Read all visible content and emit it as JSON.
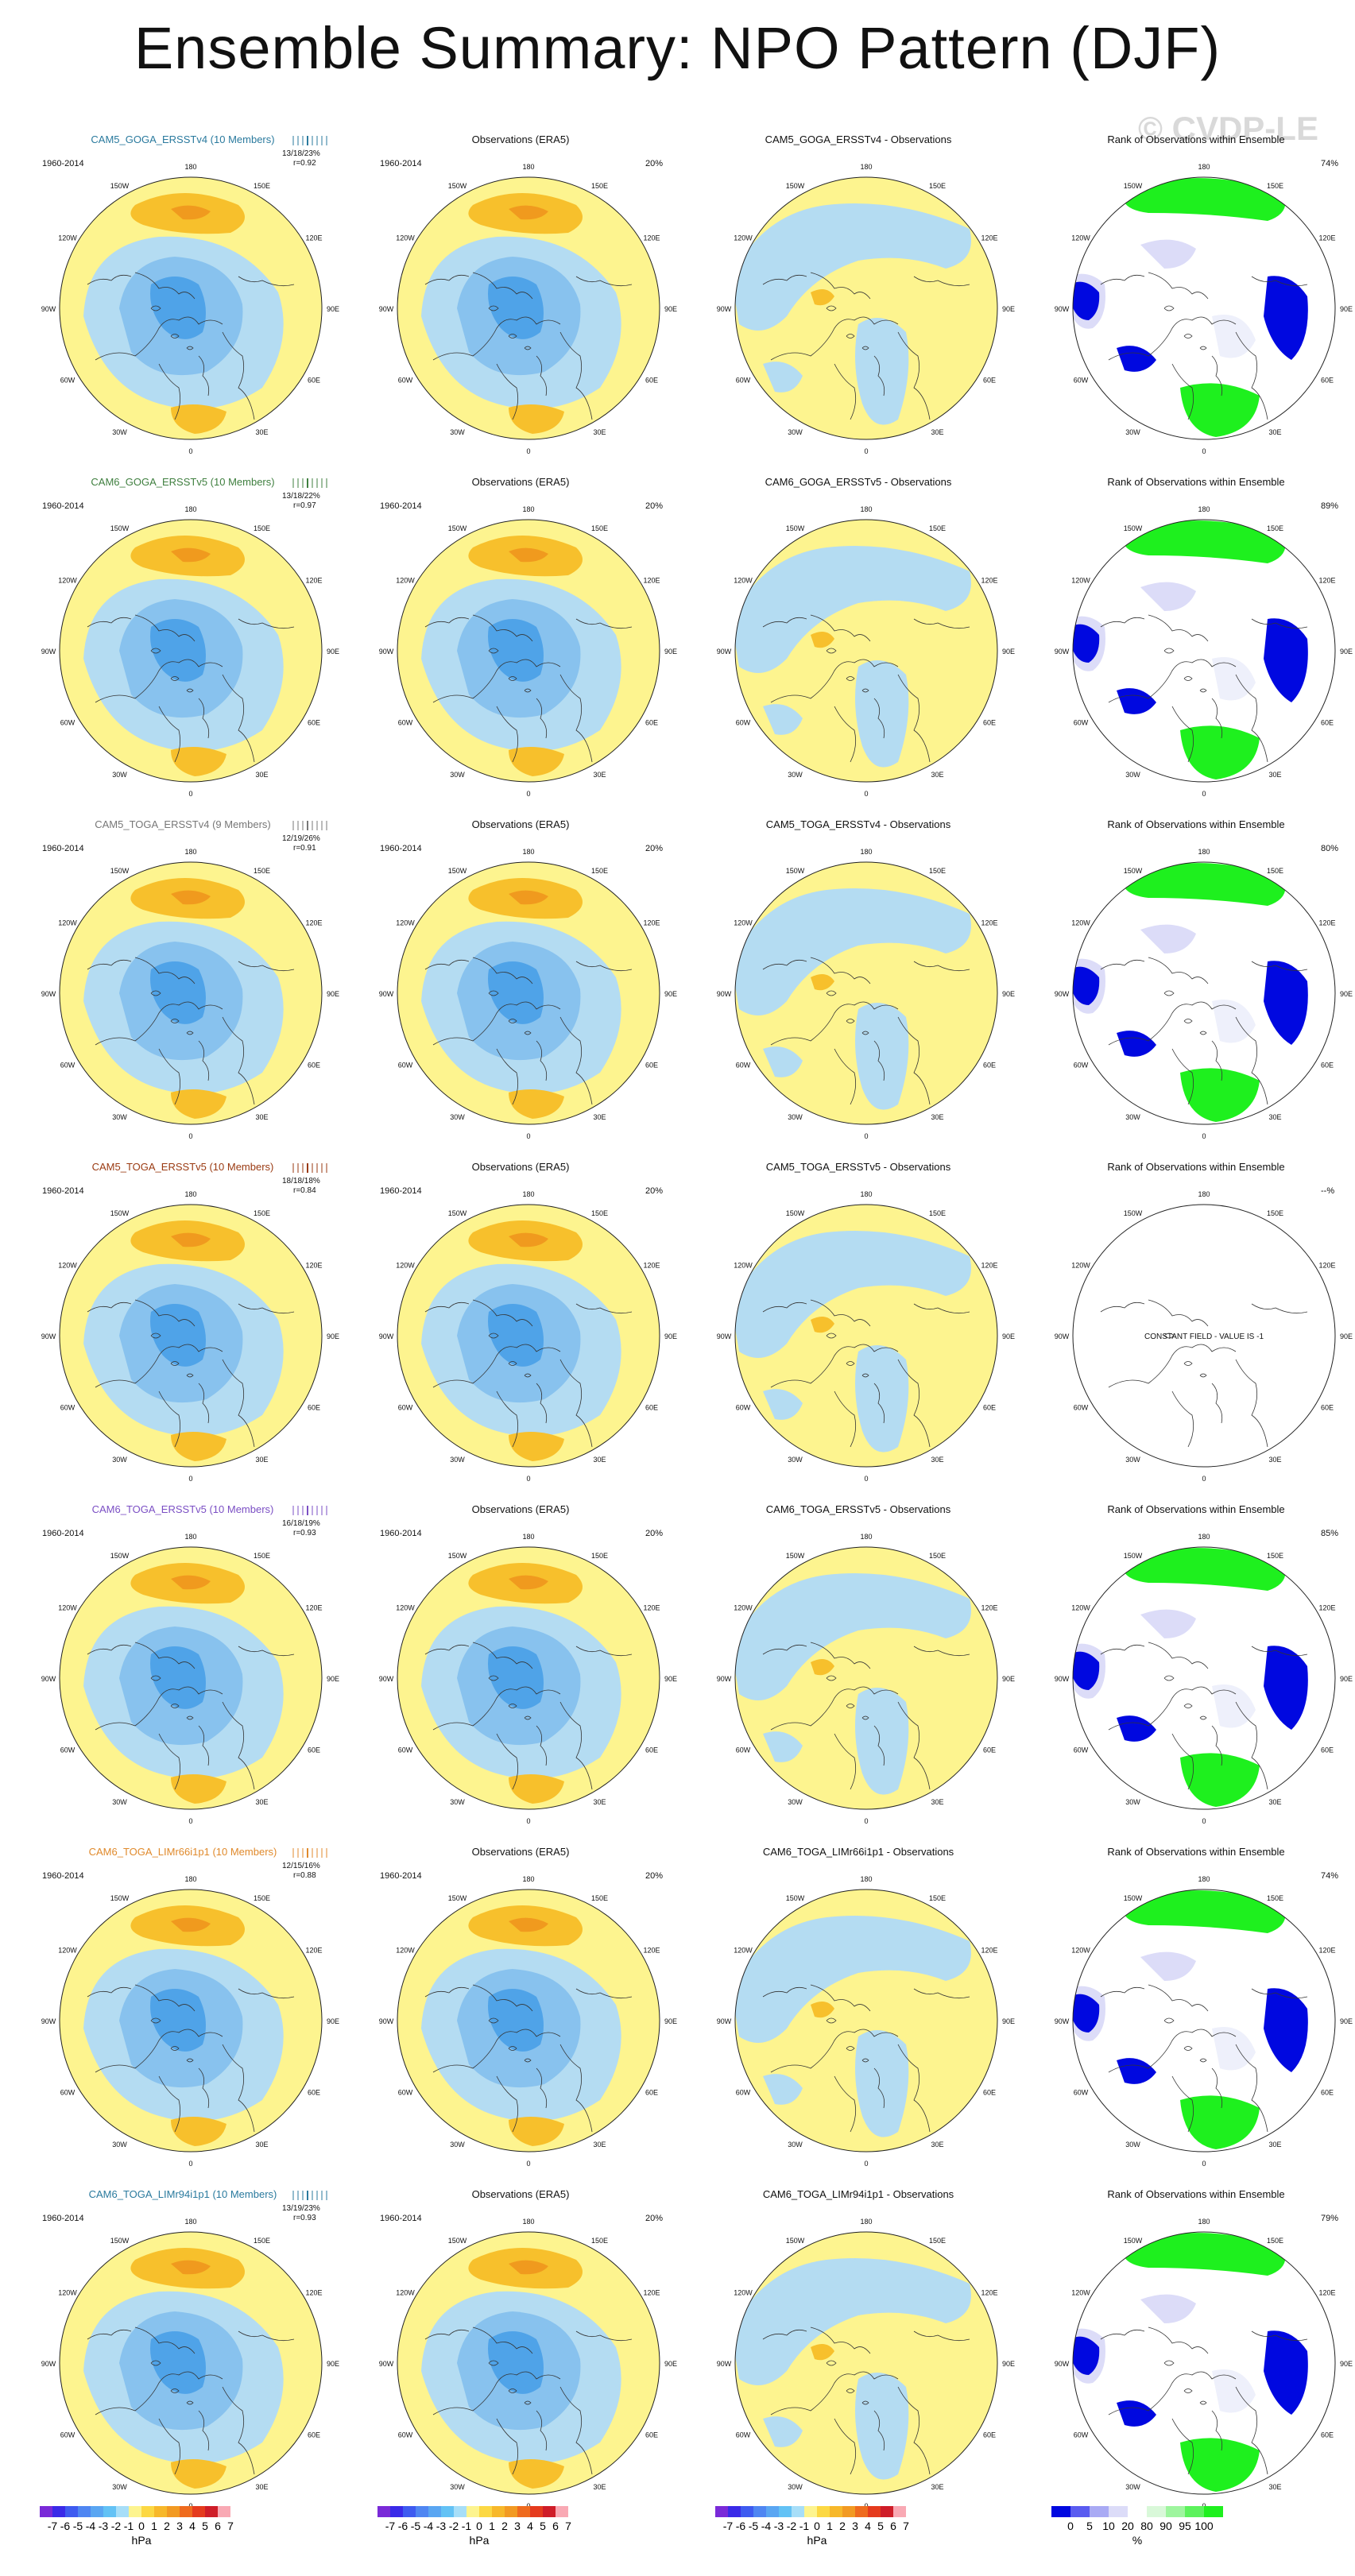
{
  "title": "Ensemble Summary: NPO Pattern (DJF)",
  "watermark": "© CVDP-LE",
  "obs_title": "Observations (ERA5)",
  "rank_title": "Rank of Observations within Ensemble",
  "period": "1960-2014",
  "obs_pct": "20%",
  "lon_labels": {
    "n": "180",
    "nw": "150W",
    "ne": "150E",
    "w1": "120W",
    "e1": "120E",
    "w2": "90W",
    "e2": "90E",
    "w3": "60W",
    "e3": "60E",
    "sw": "30W",
    "se": "30E",
    "s": "0"
  },
  "constant_field_text": "CONSTANT FIELD - VALUE IS -1",
  "rows": [
    {
      "model": "CAM5_GOGA_ERSSTv4 (10 Members)",
      "color": "#2a7a9e",
      "stats1": "13/18/23%",
      "stats2": "r=0.92",
      "diff": "CAM5_GOGA_ERSSTv4 - Observations",
      "rank_pct": "74%"
    },
    {
      "model": "CAM6_GOGA_ERSSTv5 (10 Members)",
      "color": "#3f7f3f",
      "stats1": "13/18/22%",
      "stats2": "r=0.97",
      "diff": "CAM6_GOGA_ERSSTv5 - Observations",
      "rank_pct": "89%"
    },
    {
      "model": "CAM5_TOGA_ERSSTv4 (9 Members)",
      "color": "#777777",
      "stats1": "12/19/26%",
      "stats2": "r=0.91",
      "diff": "CAM5_TOGA_ERSSTv4 - Observations",
      "rank_pct": "80%"
    },
    {
      "model": "CAM5_TOGA_ERSSTv5 (10 Members)",
      "color": "#9a3a12",
      "stats1": "18/18/18%",
      "stats2": "r=0.84",
      "diff": "CAM5_TOGA_ERSSTv5 - Observations",
      "rank_pct": "--%"
    },
    {
      "model": "CAM6_TOGA_ERSSTv5 (10 Members)",
      "color": "#7b4fc4",
      "stats1": "16/18/19%",
      "stats2": "r=0.93",
      "diff": "CAM6_TOGA_ERSSTv5 - Observations",
      "rank_pct": "85%"
    },
    {
      "model": "CAM6_TOGA_LIMr66i1p1 (10 Members)",
      "color": "#e08a2c",
      "stats1": "12/15/16%",
      "stats2": "r=0.88",
      "diff": "CAM6_TOGA_LIMr66i1p1 - Observations",
      "rank_pct": "74%"
    },
    {
      "model": "CAM6_TOGA_LIMr94i1p1 (10 Members)",
      "color": "#2a7a9e",
      "stats1": "13/19/23%",
      "stats2": "r=0.93",
      "diff": "CAM6_TOGA_LIMr94i1p1 - Observations",
      "rank_pct": "79%"
    }
  ],
  "colorbar_hpa": {
    "labels": [
      "-7",
      "-6",
      "-5",
      "-4",
      "-3",
      "-2",
      "-1",
      "0",
      "1",
      "2",
      "3",
      "4",
      "5",
      "6",
      "7"
    ],
    "unit": "hPa"
  },
  "colorbar_rank": {
    "labels": [
      "0",
      "5",
      "10",
      "20",
      "80",
      "90",
      "95",
      "100"
    ],
    "unit": "%"
  },
  "palette": {
    "yellow": "#fdf48f",
    "lightblue": "#b4dcf2",
    "blue": "#88c2ee",
    "deepblue": "#4fa3e8",
    "orange": "#f7c02c",
    "darkorange": "#f09a1e",
    "green": "#1ef01e",
    "royal": "#0008e0",
    "lavender": "#dcdcf8",
    "paleblue": "#eef0fb"
  }
}
